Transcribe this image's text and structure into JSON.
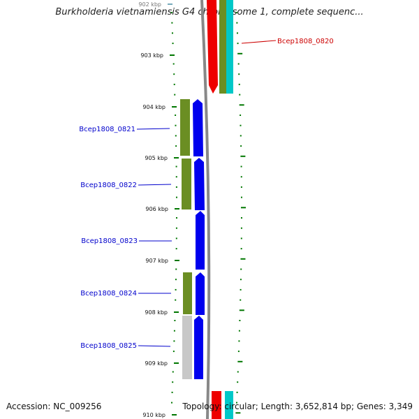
{
  "title": "Burkholderia vietnamiensis G4 chromosome 1, complete sequenc...",
  "footer": {
    "accession": "Accession: NC_009256",
    "summary": "Topology: circular; Length: 3,652,814 bp; Genes: 3,349"
  },
  "colors": {
    "gene_blue": "#0000ee",
    "gene_red": "#ee0000",
    "olive": "#6b8e23",
    "teal": "#00c8c8",
    "grey_feature": "#c8c8c8",
    "tick_green": "#007700",
    "backbone": "#888888",
    "label_blue": "#0000cc",
    "label_red": "#cc0000"
  },
  "ruler": [
    {
      "label": "902 kbp"
    },
    {
      "label": "903 kbp"
    },
    {
      "label": "904 kbp"
    },
    {
      "label": "905 kbp"
    },
    {
      "label": "906 kbp"
    },
    {
      "label": "907 kbp"
    },
    {
      "label": "908 kbp"
    },
    {
      "label": "909 kbp"
    },
    {
      "label": "910 kbp"
    }
  ],
  "genes": [
    {
      "id": "Bcep1808_0820",
      "strand": "forward",
      "color": "#ee0000"
    },
    {
      "id": "Bcep1808_0821",
      "strand": "reverse",
      "color": "#0000ee"
    },
    {
      "id": "Bcep1808_0822",
      "strand": "reverse",
      "color": "#0000ee"
    },
    {
      "id": "Bcep1808_0823",
      "strand": "reverse",
      "color": "#0000ee"
    },
    {
      "id": "Bcep1808_0824",
      "strand": "reverse",
      "color": "#0000ee"
    },
    {
      "id": "Bcep1808_0825",
      "strand": "reverse",
      "color": "#0000ee"
    }
  ]
}
